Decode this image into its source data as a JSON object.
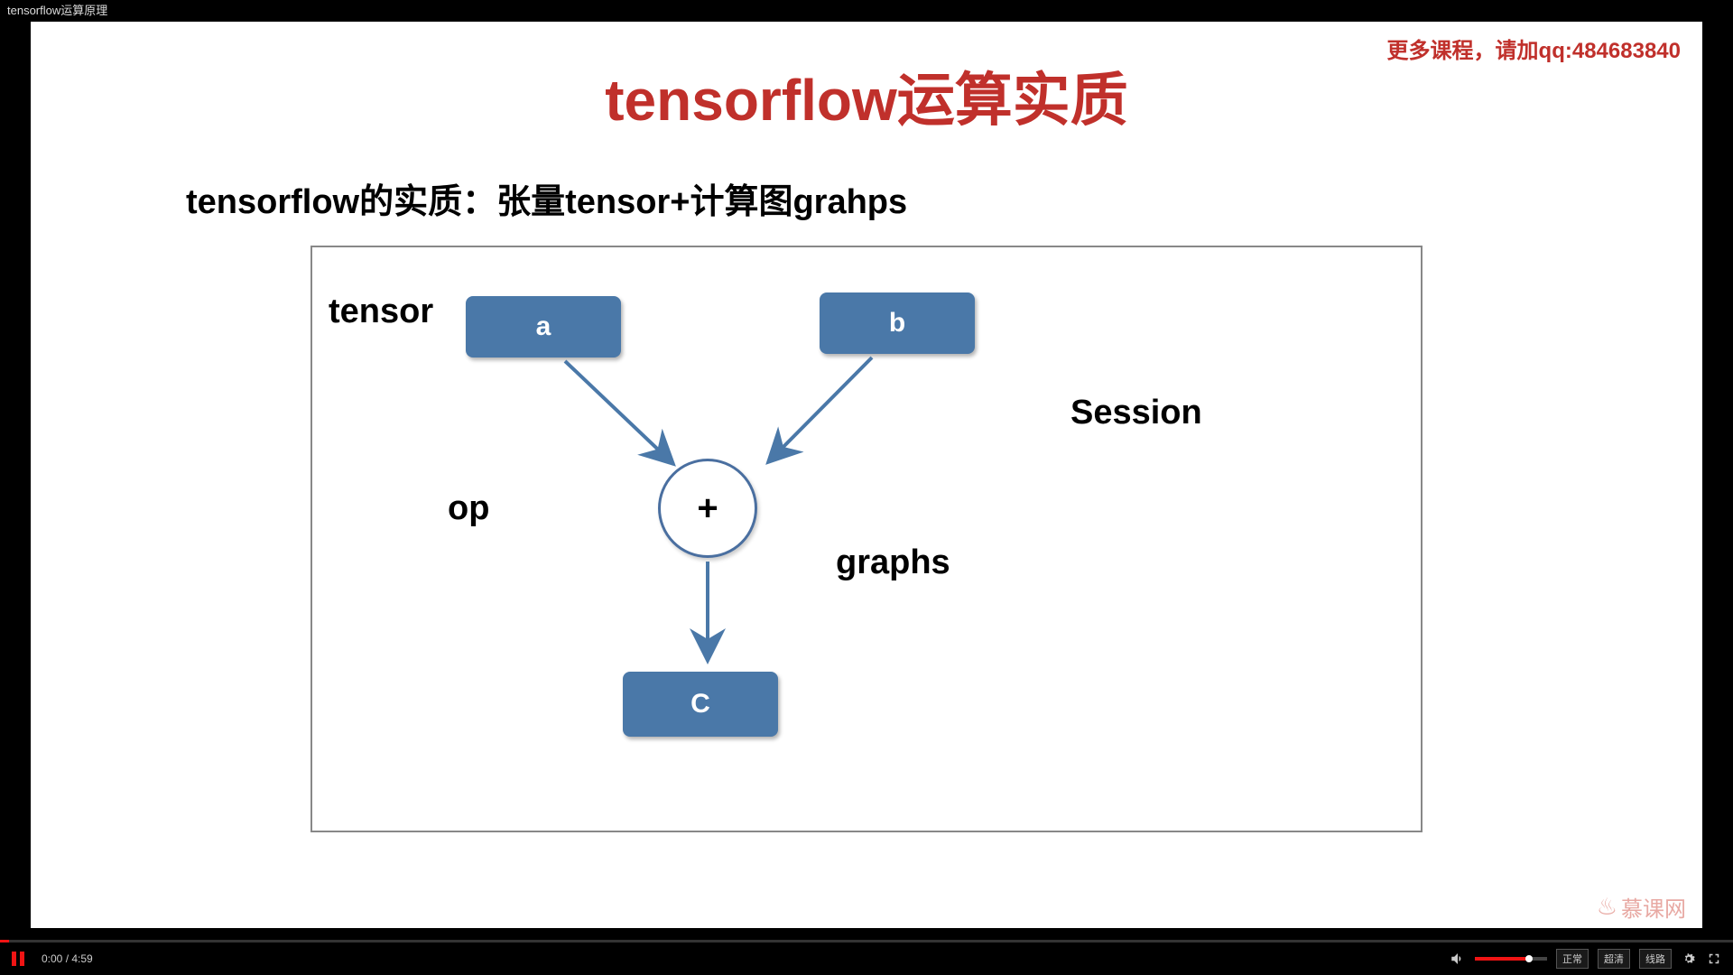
{
  "top_bar": {
    "title": "tensorflow运算原理"
  },
  "slide": {
    "title": "tensorflow运算实质",
    "title_color": "#c0302b",
    "subtitle": "tensorflow的实质：张量tensor+计算图grahps",
    "promo": "更多课程，请加qq:484683840",
    "promo_color": "#c0302b"
  },
  "diagram": {
    "type": "flowchart",
    "border_color": "#888888",
    "background": "#ffffff",
    "node_fill": "#4a78a8",
    "node_text_color": "#ffffff",
    "arrow_color": "#4a78a8",
    "labels": {
      "tensor": "tensor",
      "op": "op",
      "graphs": "graphs",
      "session": "Session"
    },
    "nodes": {
      "a": {
        "label": "a"
      },
      "b": {
        "label": "b"
      },
      "c": {
        "label": "C"
      },
      "plus": {
        "label": "+"
      }
    },
    "edges": [
      {
        "from": "a",
        "to": "plus"
      },
      {
        "from": "b",
        "to": "plus"
      },
      {
        "from": "plus",
        "to": "c"
      }
    ]
  },
  "watermark": {
    "text": "慕课网",
    "color": "#e8a9a3"
  },
  "player": {
    "current_time": "0:00",
    "duration": "4:59",
    "progress_percent": 0.5,
    "volume_percent": 75,
    "buttons": {
      "rate": "正常",
      "quality": "超清",
      "route": "线路"
    }
  }
}
